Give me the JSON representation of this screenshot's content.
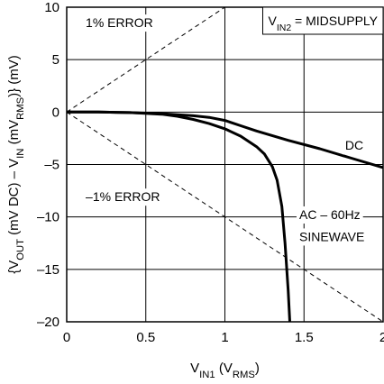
{
  "chart_data": {
    "type": "line",
    "xlabel": {
      "parts": [
        {
          "t": "V"
        },
        {
          "t": "IN1",
          "sub": true
        },
        {
          "t": " (V"
        },
        {
          "t": "RMS",
          "sub": true
        },
        {
          "t": ")"
        }
      ]
    },
    "ylabel": {
      "parts": [
        {
          "t": "{V"
        },
        {
          "t": "OUT",
          "sub": true
        },
        {
          "t": " (mV DC) – V"
        },
        {
          "t": "IN",
          "sub": true
        },
        {
          "t": " (mV"
        },
        {
          "t": "RMS",
          "sub": true
        },
        {
          "t": ")} (mV)"
        }
      ]
    },
    "xlim": [
      0,
      2
    ],
    "ylim": [
      -20,
      10
    ],
    "xticks": [
      0,
      0.5,
      1,
      1.5,
      2
    ],
    "xtick_labels": [
      "0",
      "0.5",
      "1",
      "1.5",
      "2"
    ],
    "yticks": [
      10,
      5,
      0,
      -5,
      -10,
      -15,
      -20
    ],
    "ytick_labels": [
      "10",
      "5",
      "0",
      "–5",
      "–10",
      "–15",
      "–20"
    ],
    "grid": true,
    "series": [
      {
        "name": "DC",
        "style": "solid",
        "points": [
          [
            0,
            0
          ],
          [
            0.2,
            0
          ],
          [
            0.4,
            -0.05
          ],
          [
            0.6,
            -0.15
          ],
          [
            0.8,
            -0.35
          ],
          [
            0.9,
            -0.5
          ],
          [
            1.0,
            -0.8
          ],
          [
            1.1,
            -1.3
          ],
          [
            1.2,
            -1.8
          ],
          [
            1.4,
            -2.7
          ],
          [
            1.6,
            -3.5
          ],
          [
            1.8,
            -4.4
          ],
          [
            2.0,
            -5.3
          ]
        ]
      },
      {
        "name": "AC – 60Hz SINEWAVE",
        "style": "solid",
        "points": [
          [
            0,
            0
          ],
          [
            0.2,
            0
          ],
          [
            0.4,
            -0.05
          ],
          [
            0.6,
            -0.2
          ],
          [
            0.7,
            -0.4
          ],
          [
            0.8,
            -0.7
          ],
          [
            0.9,
            -1.1
          ],
          [
            1.0,
            -1.6
          ],
          [
            1.1,
            -2.3
          ],
          [
            1.2,
            -3.3
          ],
          [
            1.25,
            -4.0
          ],
          [
            1.3,
            -5.2
          ],
          [
            1.33,
            -6.5
          ],
          [
            1.36,
            -9.0
          ],
          [
            1.38,
            -12.5
          ],
          [
            1.4,
            -17.0
          ],
          [
            1.41,
            -20
          ]
        ]
      },
      {
        "name": "1% ERROR",
        "style": "dashed",
        "points": [
          [
            0,
            0
          ],
          [
            2,
            20
          ]
        ]
      },
      {
        "name": "–1% ERROR",
        "style": "dashed",
        "points": [
          [
            0,
            0
          ],
          [
            2,
            -20
          ]
        ]
      }
    ],
    "annotations": [
      {
        "text": "1% ERROR",
        "x": 0.12,
        "y": 8.1
      },
      {
        "text": "–1% ERROR",
        "x": 0.12,
        "y": -8.5
      },
      {
        "text": "DC",
        "x": 1.76,
        "y": -3.6
      },
      {
        "text": "AC – 60Hz",
        "x": 1.47,
        "y": -10.2
      },
      {
        "text": "SINEWAVE",
        "x": 1.47,
        "y": -12.3
      }
    ],
    "legend_box": {
      "parts": [
        {
          "t": "V"
        },
        {
          "t": "IN2",
          "sub": true
        },
        {
          "t": " = MIDSUPPLY"
        }
      ]
    }
  }
}
